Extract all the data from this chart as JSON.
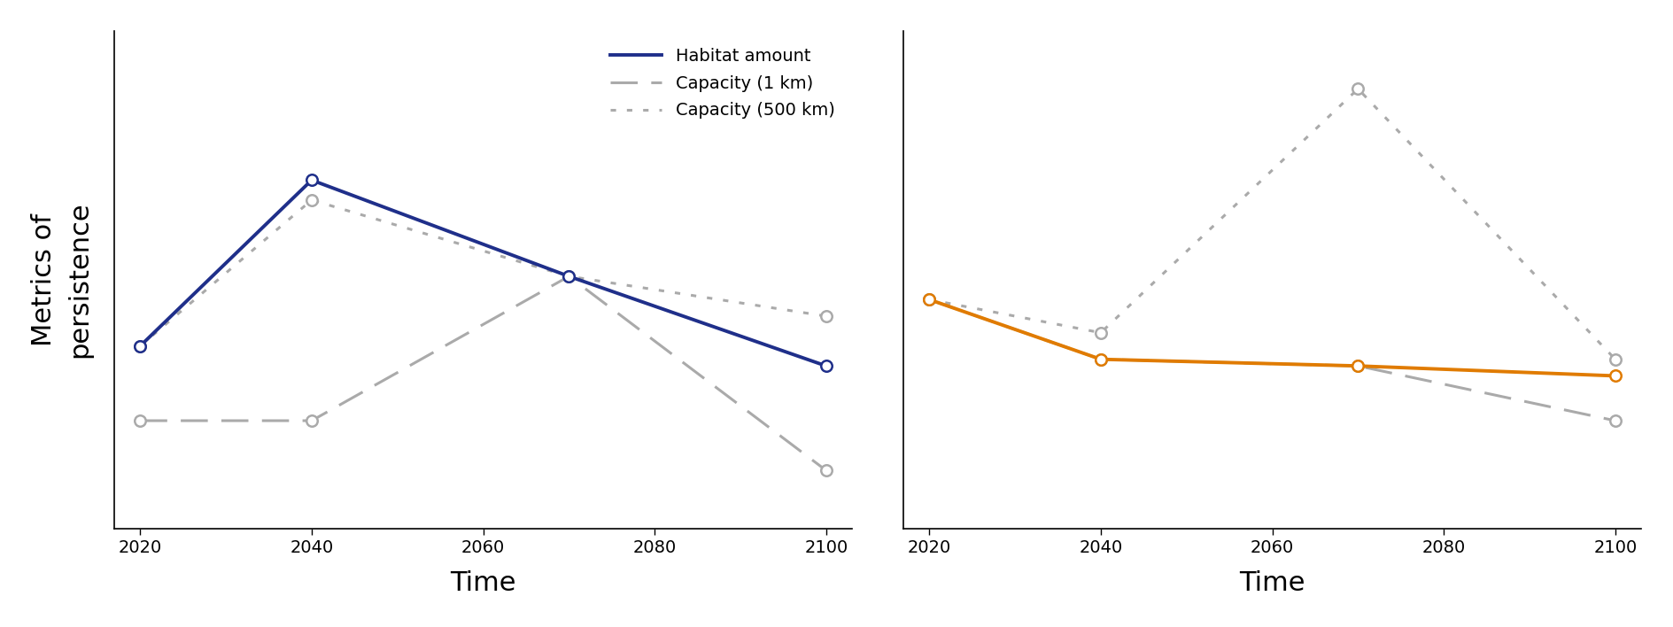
{
  "time_points": [
    2020,
    2040,
    2070,
    2100
  ],
  "left_panel": {
    "habitat_amount": [
      0.0,
      1.0,
      0.42,
      -0.12
    ],
    "capacity_1km": [
      -0.45,
      -0.45,
      0.42,
      -0.75
    ],
    "capacity_500km": [
      0.0,
      0.88,
      0.42,
      0.18
    ]
  },
  "right_panel": {
    "habitat_amount": [
      0.28,
      -0.08,
      -0.12,
      -0.18
    ],
    "capacity_1km": [
      0.28,
      -0.08,
      -0.12,
      -0.45
    ],
    "capacity_500km": [
      0.28,
      0.08,
      1.55,
      -0.08
    ]
  },
  "colors": {
    "habitat_left": "#1f2f8a",
    "habitat_right": "#e07b00",
    "capacity_grey": "#aaaaaa"
  },
  "legend_labels": [
    "Habitat amount",
    "Capacity (1 km)",
    "Capacity (500 km)"
  ],
  "xlabel": "Time",
  "ylabel": "Metrics of\npersistence",
  "marker_size": 9,
  "linewidth_solid": 2.8,
  "linewidth_dashed": 2.2
}
